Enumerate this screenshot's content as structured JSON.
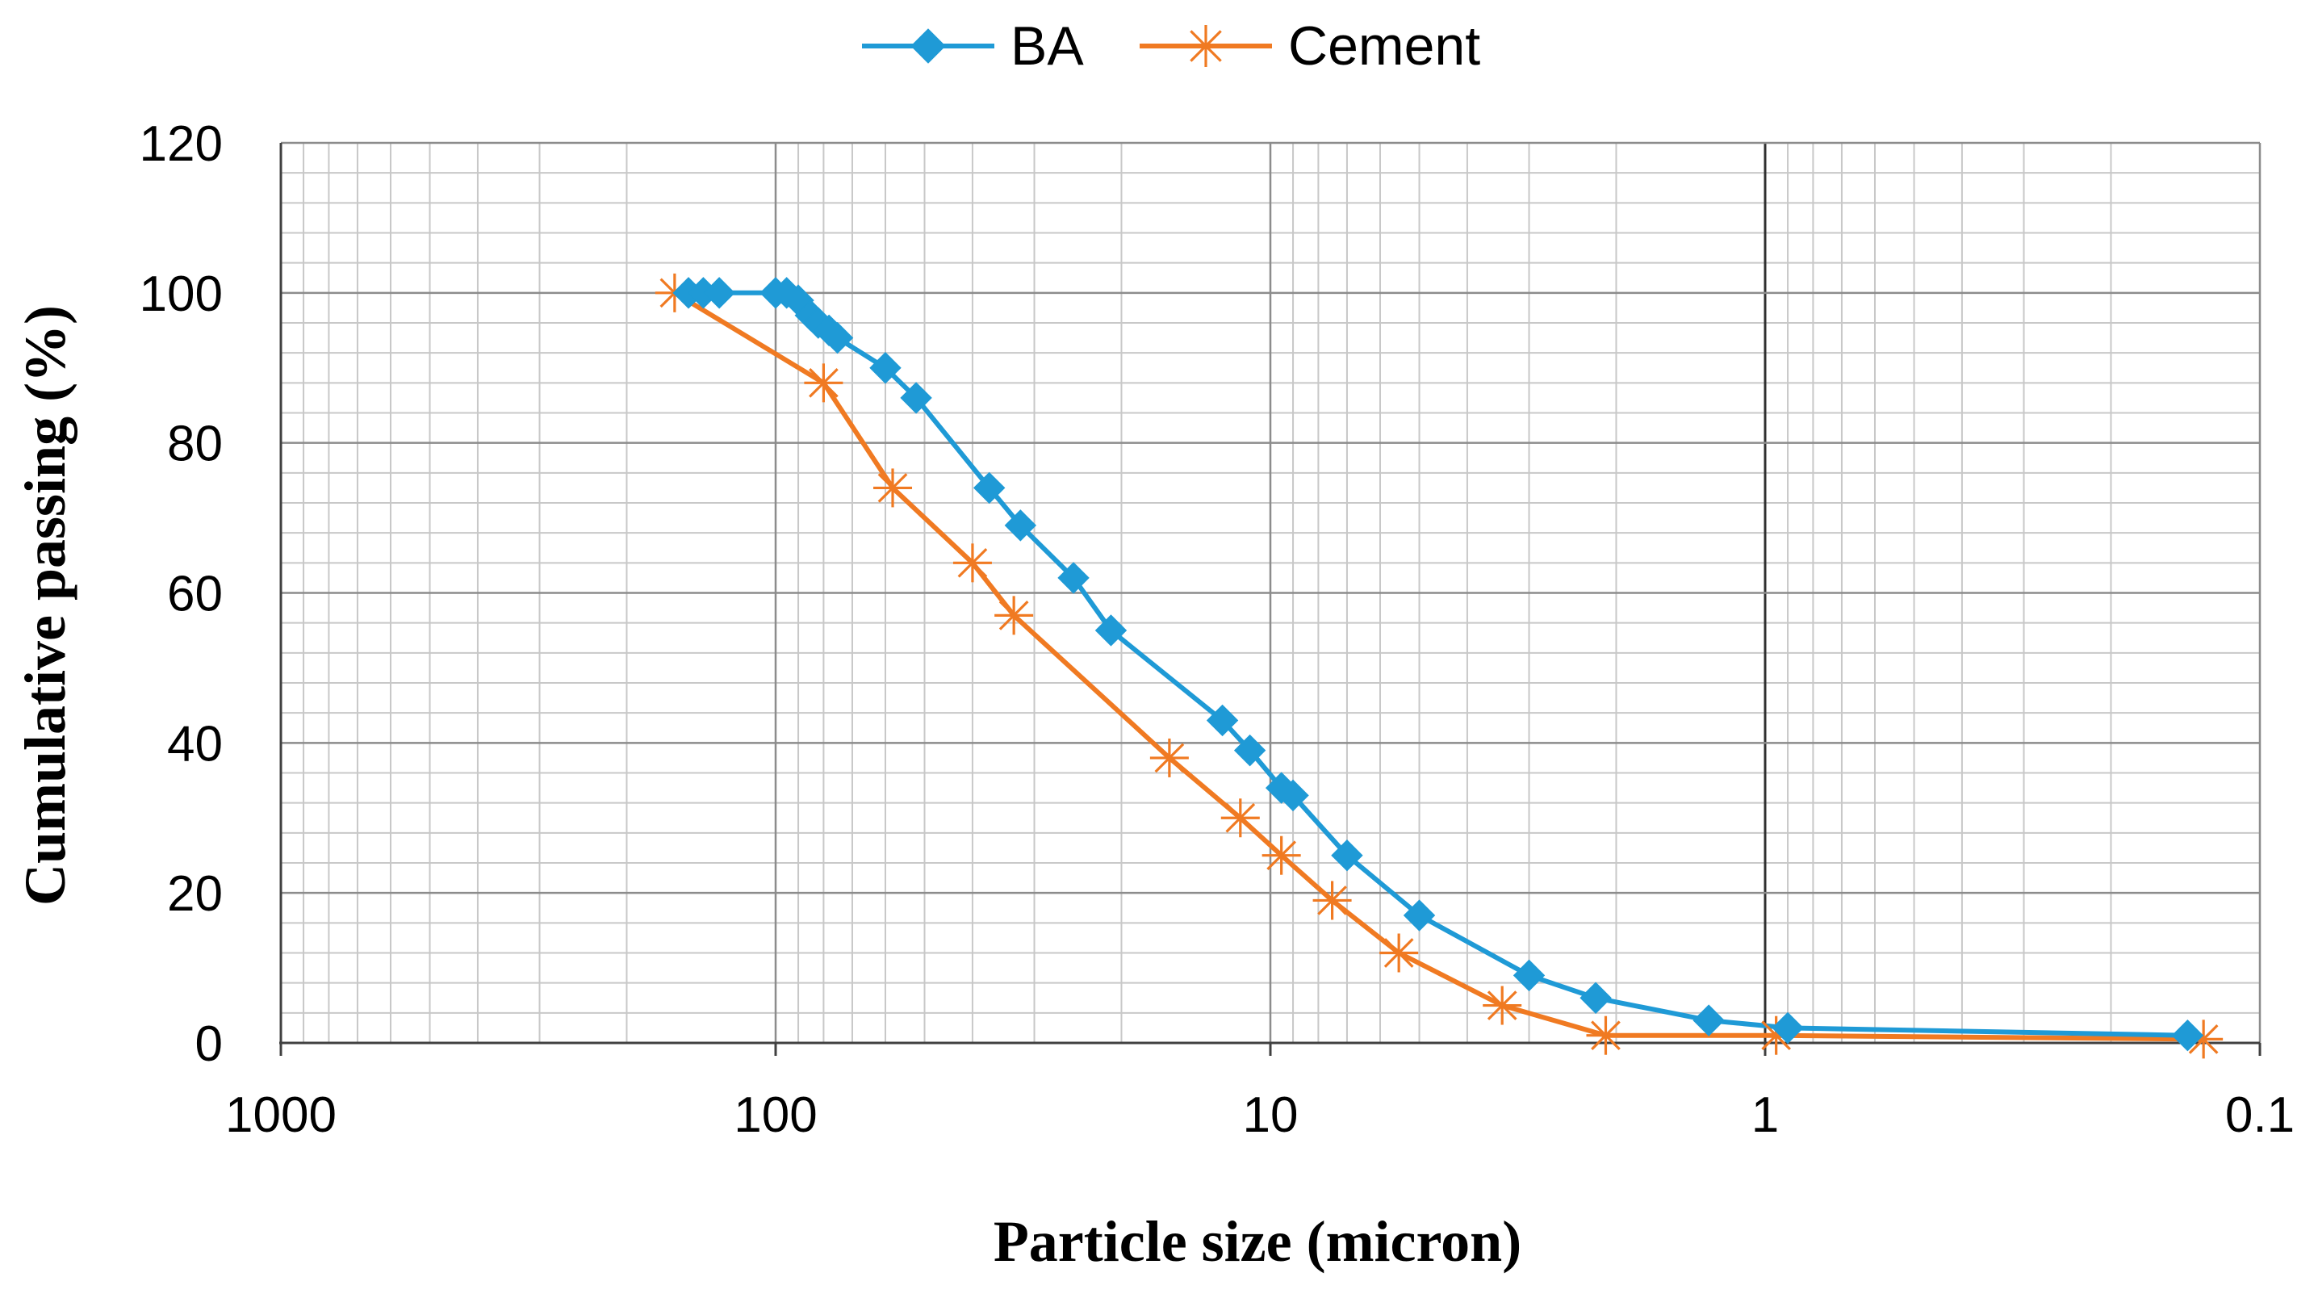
{
  "chart_data": {
    "type": "line",
    "title": "",
    "xlabel": "Particle size (micron)",
    "ylabel": "Cumulative passing (%)",
    "xscale": "log",
    "x_reversed": true,
    "xlim": [
      1000,
      0.1
    ],
    "ylim": [
      0,
      120
    ],
    "x_ticks": [
      1000,
      100,
      10,
      1,
      0.1
    ],
    "x_tick_labels": [
      "1000",
      "100",
      "10",
      "1",
      "0.1"
    ],
    "y_ticks": [
      0,
      20,
      40,
      60,
      80,
      100,
      120
    ],
    "y_tick_labels": [
      "0",
      "20",
      "40",
      "60",
      "80",
      "100",
      "120"
    ],
    "grid": true,
    "legend_position": "top-center",
    "series": [
      {
        "name": "BA",
        "color": "#1f9ad6",
        "marker": "diamond",
        "x": [
          150,
          140,
          130,
          100,
          95,
          90,
          85,
          82,
          78,
          75,
          60,
          52,
          37,
          32,
          25,
          21,
          12.5,
          11,
          9.5,
          9,
          7,
          5,
          3,
          2.2,
          1.3,
          0.9,
          0.14
        ],
        "y": [
          100,
          100,
          100,
          100,
          100,
          99,
          97,
          96,
          95,
          94,
          90,
          86,
          74,
          69,
          62,
          55,
          43,
          39,
          34,
          33,
          25,
          17,
          9,
          6,
          3,
          2,
          1
        ]
      },
      {
        "name": "Cement",
        "color": "#f07a22",
        "marker": "asterisk",
        "x": [
          160,
          80,
          58,
          40,
          33,
          16,
          11.5,
          9.5,
          7.5,
          5.5,
          3.4,
          2.1,
          0.95,
          0.13
        ],
        "y": [
          100,
          88,
          74,
          64,
          57,
          38,
          30,
          25,
          19,
          12,
          5,
          1,
          1,
          0.5
        ]
      }
    ]
  }
}
